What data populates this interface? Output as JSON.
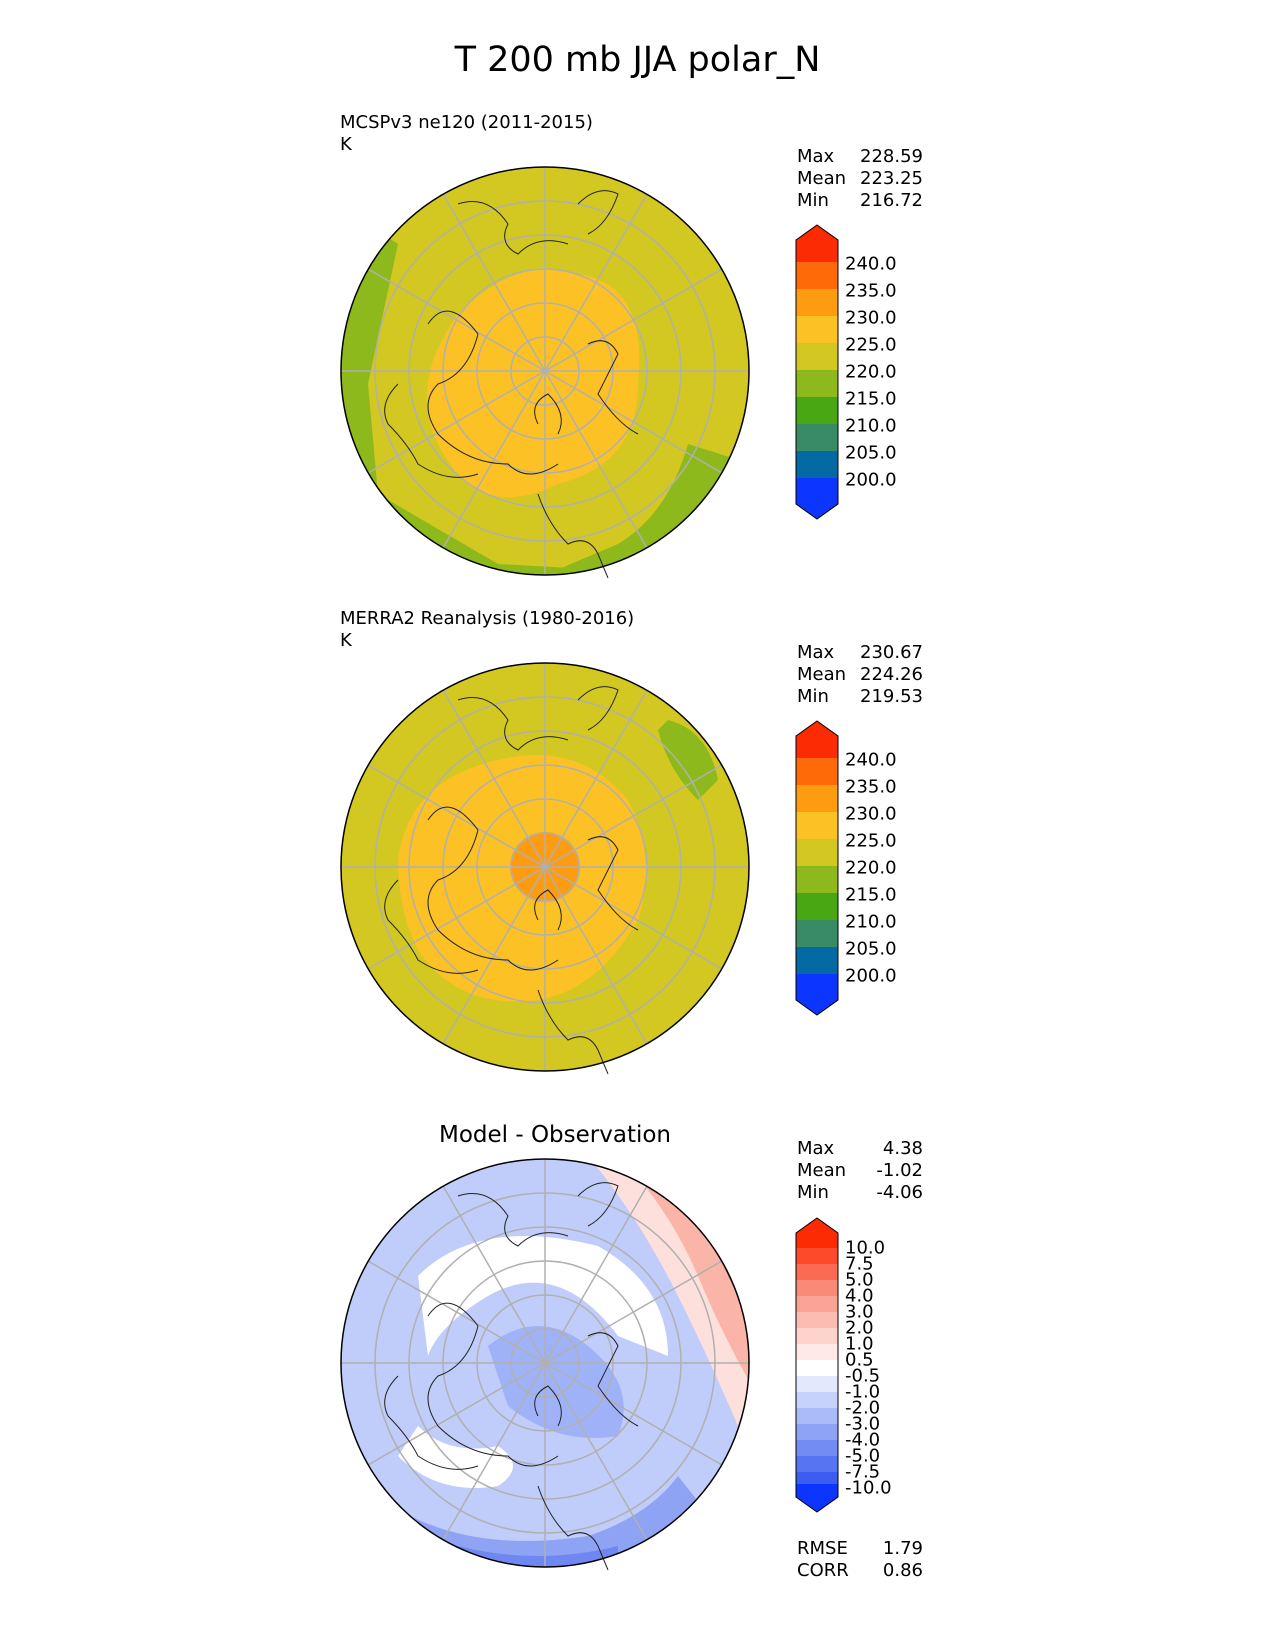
{
  "figure": {
    "title": "T 200 mb JJA polar_N"
  },
  "colors": {
    "c_200": "#0c36ff",
    "c_205": "#036aa3",
    "c_210": "#398b66",
    "c_215": "#49a713",
    "c_220": "#8db91c",
    "c_225": "#d3c821",
    "c_230": "#fbc125",
    "c_235": "#fd9b11",
    "c_240": "#fd6a07",
    "c_over": "#fd2b03"
  },
  "panels": [
    {
      "label": "MCSPv3 ne120 (2011-2015)",
      "units": "K",
      "stats": {
        "max_label": "Max",
        "max": "228.59",
        "mean_label": "Mean",
        "mean": "223.25",
        "min_label": "Min",
        "min": "216.72"
      },
      "colorbar_ticks": [
        "240.0",
        "235.0",
        "230.0",
        "225.0",
        "220.0",
        "215.0",
        "210.0",
        "205.0",
        "200.0"
      ]
    },
    {
      "label": "MERRA2 Reanalysis (1980-2016)",
      "units": "K",
      "stats": {
        "max_label": "Max",
        "max": "230.67",
        "mean_label": "Mean",
        "mean": "224.26",
        "min_label": "Min",
        "min": "219.53"
      },
      "colorbar_ticks": [
        "240.0",
        "235.0",
        "230.0",
        "225.0",
        "220.0",
        "215.0",
        "210.0",
        "205.0",
        "200.0"
      ]
    },
    {
      "title": "Model - Observation",
      "stats": {
        "max_label": "Max",
        "max": "4.38",
        "mean_label": "Mean",
        "mean": "-1.02",
        "min_label": "Min",
        "min": "-4.06"
      },
      "colorbar_ticks": [
        "10.0",
        "7.5",
        "5.0",
        "4.0",
        "3.0",
        "2.0",
        "1.0",
        "0.5",
        "-0.5",
        "-1.0",
        "-2.0",
        "-3.0",
        "-4.0",
        "-5.0",
        "-7.5",
        "-10.0"
      ],
      "metrics": {
        "rmse_label": "RMSE",
        "rmse": "1.79",
        "corr_label": "CORR",
        "corr": "0.86"
      }
    }
  ]
}
